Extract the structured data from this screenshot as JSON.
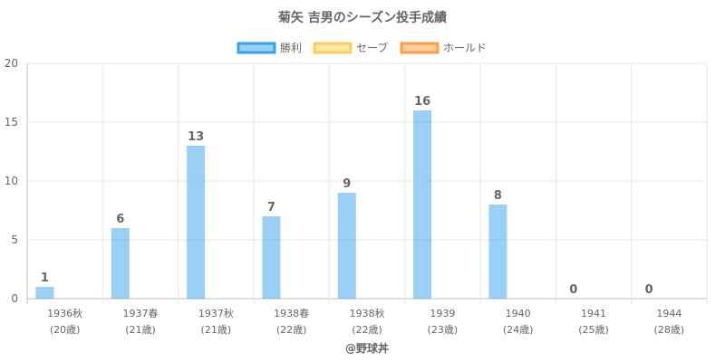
{
  "chart_data": {
    "type": "bar",
    "title": "菊矢 吉男のシーズン投手成績",
    "categories": [
      [
        "1936秋",
        "(20歳)"
      ],
      [
        "1937春",
        "(21歳)"
      ],
      [
        "1937秋",
        "(21歳)"
      ],
      [
        "1938春",
        "(22歳)"
      ],
      [
        "1938秋",
        "(22歳)"
      ],
      [
        "1939",
        "(23歳)"
      ],
      [
        "1940",
        "(24歳)"
      ],
      [
        "1941",
        "(25歳)"
      ],
      [
        "1944",
        "(28歳)"
      ]
    ],
    "series": [
      {
        "name": "勝利",
        "color": "#36a2eb",
        "values": [
          1,
          6,
          13,
          7,
          9,
          16,
          8,
          0,
          0
        ]
      },
      {
        "name": "セーブ",
        "color": "#ffcd56",
        "values": [
          null,
          null,
          null,
          null,
          null,
          null,
          null,
          null,
          null
        ]
      },
      {
        "name": "ホールド",
        "color": "#ff9f40",
        "values": [
          null,
          null,
          null,
          null,
          null,
          null,
          null,
          null,
          null
        ]
      }
    ],
    "ylim": [
      0,
      20
    ],
    "yticks": [
      0,
      5,
      10,
      15,
      20
    ],
    "grid": true,
    "legend_position": "top"
  },
  "credit": "@野球丼"
}
